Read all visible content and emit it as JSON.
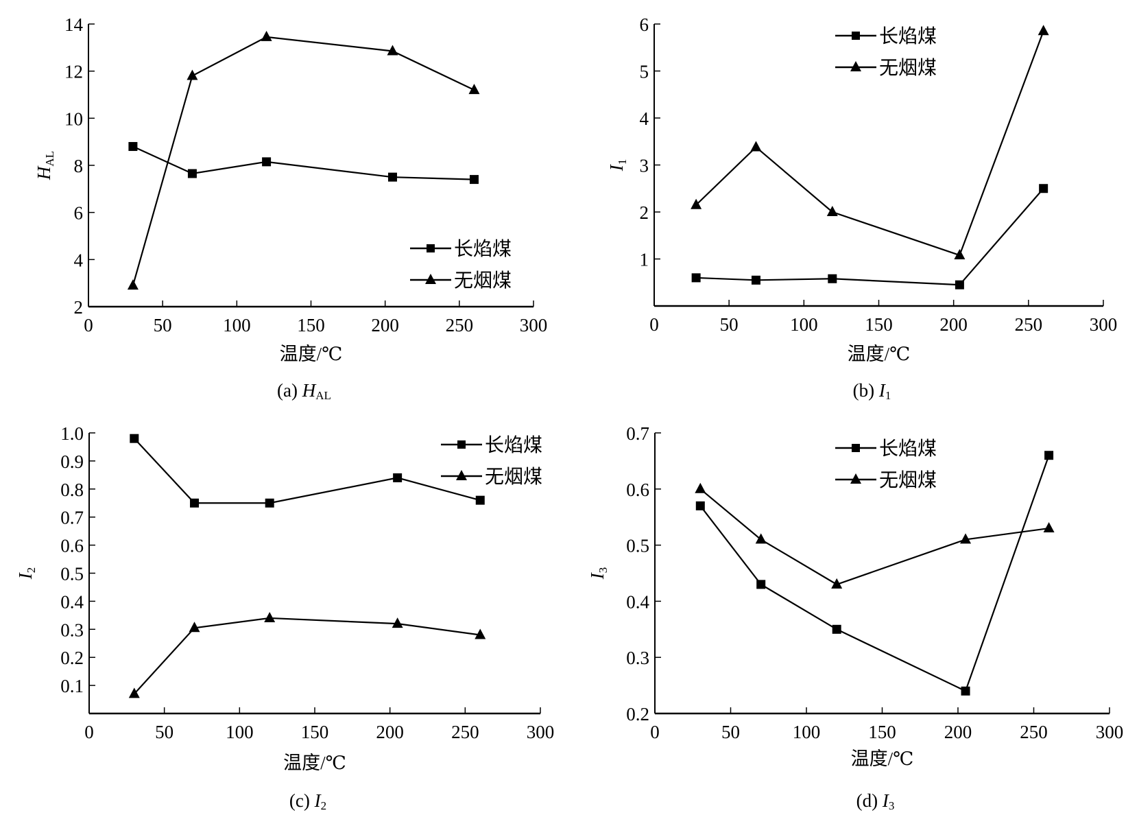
{
  "legend": [
    {
      "name": "长焰煤",
      "marker": "square"
    },
    {
      "name": "无烟煤",
      "marker": "triangle"
    }
  ],
  "chart_data": [
    {
      "id": "a",
      "type": "line",
      "caption": "(a)",
      "caption_var": "H",
      "caption_sub": "AL",
      "title": "(a) H_AL",
      "xlabel": "温度/℃",
      "ylabel": "H",
      "ylabel_sub": "AL",
      "xlim": [
        0,
        300
      ],
      "ylim": [
        2,
        14
      ],
      "xticks": [
        0,
        50,
        100,
        150,
        200,
        250,
        300
      ],
      "yticks": [
        2,
        4,
        6,
        8,
        10,
        12,
        14
      ],
      "ytick_labels": [
        "2",
        "4",
        "6",
        "8",
        "10",
        "12",
        "14"
      ],
      "legend_position": "lower-right",
      "grid": false,
      "series": [
        {
          "name": "长焰煤",
          "marker": "square",
          "x": [
            30,
            70,
            120,
            205,
            260
          ],
          "y": [
            8.8,
            7.65,
            8.15,
            7.5,
            7.4
          ]
        },
        {
          "name": "无烟煤",
          "marker": "triangle",
          "x": [
            30,
            70,
            120,
            205,
            260
          ],
          "y": [
            2.9,
            11.8,
            13.45,
            12.85,
            11.2
          ]
        }
      ]
    },
    {
      "id": "b",
      "type": "line",
      "caption": "(b)",
      "caption_var": "I",
      "caption_sub": "1",
      "title": "(b) I_1",
      "xlabel": "温度/℃",
      "ylabel": "I",
      "ylabel_sub": "1",
      "xlim": [
        0,
        300
      ],
      "ylim": [
        0,
        6
      ],
      "xticks": [
        0,
        50,
        100,
        150,
        200,
        250,
        300
      ],
      "yticks": [
        1,
        2,
        3,
        4,
        5,
        6
      ],
      "ytick_labels": [
        "1",
        "2",
        "3",
        "4",
        "5",
        "6"
      ],
      "legend_position": "top-center",
      "grid": false,
      "series": [
        {
          "name": "长焰煤",
          "marker": "square",
          "x": [
            28,
            68,
            119,
            204,
            260
          ],
          "y": [
            0.6,
            0.55,
            0.58,
            0.45,
            2.5
          ]
        },
        {
          "name": "无烟煤",
          "marker": "triangle",
          "x": [
            28,
            68,
            119,
            204,
            260
          ],
          "y": [
            2.15,
            3.38,
            2.0,
            1.08,
            5.85
          ]
        }
      ]
    },
    {
      "id": "c",
      "type": "line",
      "caption": "(c)",
      "caption_var": "I",
      "caption_sub": "2",
      "title": "(c) I_2",
      "xlabel": "温度/℃",
      "ylabel": "I",
      "ylabel_sub": "2",
      "xlim": [
        0,
        300
      ],
      "ylim": [
        0,
        1.0
      ],
      "xticks": [
        0,
        50,
        100,
        150,
        200,
        250,
        300
      ],
      "yticks": [
        0.1,
        0.2,
        0.3,
        0.4,
        0.5,
        0.6,
        0.7,
        0.8,
        0.9,
        1.0
      ],
      "ytick_labels": [
        "0.1",
        "0.2",
        "0.3",
        "0.4",
        "0.5",
        "0.6",
        "0.7",
        "0.8",
        "0.9",
        "1.0"
      ],
      "legend_position": "top-right",
      "grid": false,
      "series": [
        {
          "name": "长焰煤",
          "marker": "square",
          "x": [
            30,
            70,
            120,
            205,
            260
          ],
          "y": [
            0.98,
            0.75,
            0.75,
            0.84,
            0.76
          ]
        },
        {
          "name": "无烟煤",
          "marker": "triangle",
          "x": [
            30,
            70,
            120,
            205,
            260
          ],
          "y": [
            0.07,
            0.305,
            0.34,
            0.32,
            0.28
          ]
        }
      ]
    },
    {
      "id": "d",
      "type": "line",
      "caption": "(d)",
      "caption_var": "I",
      "caption_sub": "3",
      "title": "(d) I_3",
      "xlabel": "温度/℃",
      "ylabel": "I",
      "ylabel_sub": "3",
      "xlim": [
        0,
        300
      ],
      "ylim": [
        0.2,
        0.7
      ],
      "xticks": [
        0,
        50,
        100,
        150,
        200,
        250,
        300
      ],
      "yticks": [
        0.2,
        0.3,
        0.4,
        0.5,
        0.6,
        0.7
      ],
      "ytick_labels": [
        "0.2",
        "0.3",
        "0.4",
        "0.5",
        "0.6",
        "0.7"
      ],
      "legend_position": "top-center",
      "grid": false,
      "series": [
        {
          "name": "长焰煤",
          "marker": "square",
          "x": [
            30,
            70,
            120,
            205,
            260
          ],
          "y": [
            0.57,
            0.43,
            0.35,
            0.24,
            0.66
          ]
        },
        {
          "name": "无烟煤",
          "marker": "triangle",
          "x": [
            30,
            70,
            120,
            205,
            260
          ],
          "y": [
            0.6,
            0.51,
            0.43,
            0.51,
            0.53
          ]
        }
      ]
    }
  ]
}
